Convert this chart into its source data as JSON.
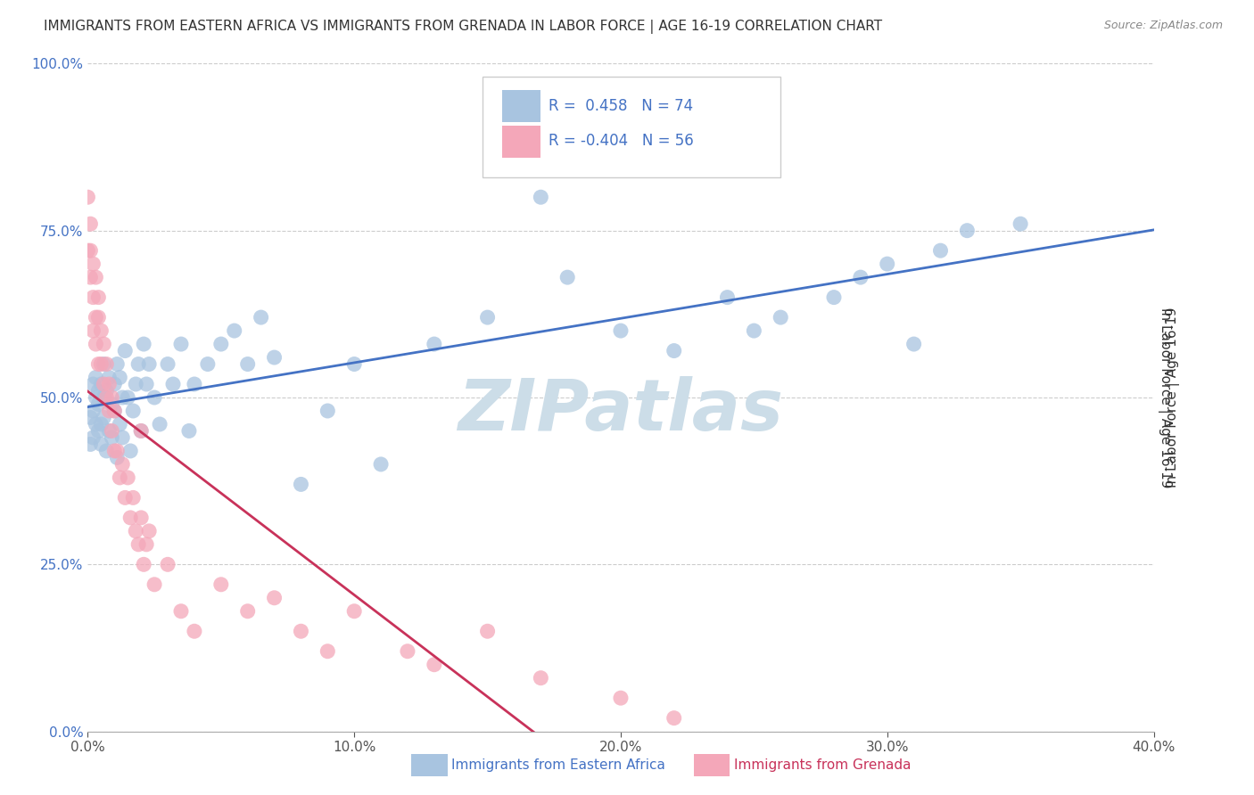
{
  "title": "IMMIGRANTS FROM EASTERN AFRICA VS IMMIGRANTS FROM GRENADA IN LABOR FORCE | AGE 16-19 CORRELATION CHART",
  "source": "Source: ZipAtlas.com",
  "ylabel": "In Labor Force | Age 16-19",
  "x_label_bottom": "Immigrants from Eastern Africa",
  "x_label_bottom2": "Immigrants from Grenada",
  "xlim": [
    0.0,
    0.4
  ],
  "ylim": [
    0.0,
    1.0
  ],
  "xticks": [
    0.0,
    0.1,
    0.2,
    0.3,
    0.4
  ],
  "yticks": [
    0.0,
    0.25,
    0.5,
    0.75,
    1.0
  ],
  "xticklabels": [
    "0.0%",
    "10.0%",
    "20.0%",
    "30.0%",
    "40.0%"
  ],
  "yticklabels": [
    "0.0%",
    "25.0%",
    "50.0%",
    "75.0%",
    "100.0%"
  ],
  "blue_R": 0.458,
  "blue_N": 74,
  "pink_R": -0.404,
  "pink_N": 56,
  "blue_color": "#a8c4e0",
  "pink_color": "#f4a7b9",
  "blue_line_color": "#4472c4",
  "pink_line_color": "#c8325a",
  "watermark": "ZIPatlas",
  "watermark_color": "#ccdde8",
  "legend_text_color": "#4472c4",
  "title_fontsize": 11,
  "axis_label_fontsize": 11,
  "tick_fontsize": 11,
  "blue_scatter_x": [
    0.001,
    0.001,
    0.002,
    0.002,
    0.002,
    0.003,
    0.003,
    0.003,
    0.004,
    0.004,
    0.004,
    0.005,
    0.005,
    0.005,
    0.006,
    0.006,
    0.006,
    0.007,
    0.007,
    0.008,
    0.008,
    0.009,
    0.009,
    0.01,
    0.01,
    0.011,
    0.011,
    0.012,
    0.012,
    0.013,
    0.013,
    0.014,
    0.015,
    0.016,
    0.017,
    0.018,
    0.019,
    0.02,
    0.021,
    0.022,
    0.023,
    0.025,
    0.027,
    0.03,
    0.032,
    0.035,
    0.038,
    0.04,
    0.045,
    0.05,
    0.055,
    0.06,
    0.065,
    0.07,
    0.08,
    0.09,
    0.1,
    0.11,
    0.13,
    0.15,
    0.18,
    0.2,
    0.22,
    0.24,
    0.26,
    0.28,
    0.3,
    0.31,
    0.33,
    0.35,
    0.32,
    0.29,
    0.25,
    0.17
  ],
  "blue_scatter_y": [
    0.43,
    0.47,
    0.48,
    0.52,
    0.44,
    0.5,
    0.46,
    0.53,
    0.51,
    0.45,
    0.49,
    0.46,
    0.52,
    0.43,
    0.5,
    0.47,
    0.55,
    0.42,
    0.51,
    0.45,
    0.53,
    0.49,
    0.44,
    0.52,
    0.48,
    0.55,
    0.41,
    0.53,
    0.46,
    0.5,
    0.44,
    0.57,
    0.5,
    0.42,
    0.48,
    0.52,
    0.55,
    0.45,
    0.58,
    0.52,
    0.55,
    0.5,
    0.46,
    0.55,
    0.52,
    0.58,
    0.45,
    0.52,
    0.55,
    0.58,
    0.6,
    0.55,
    0.62,
    0.56,
    0.37,
    0.48,
    0.55,
    0.4,
    0.58,
    0.62,
    0.68,
    0.6,
    0.57,
    0.65,
    0.62,
    0.65,
    0.7,
    0.58,
    0.75,
    0.76,
    0.72,
    0.68,
    0.6,
    0.8
  ],
  "pink_scatter_x": [
    0.0,
    0.0,
    0.001,
    0.001,
    0.001,
    0.002,
    0.002,
    0.002,
    0.003,
    0.003,
    0.003,
    0.004,
    0.004,
    0.004,
    0.005,
    0.005,
    0.006,
    0.006,
    0.007,
    0.007,
    0.008,
    0.008,
    0.009,
    0.009,
    0.01,
    0.01,
    0.011,
    0.012,
    0.013,
    0.014,
    0.015,
    0.016,
    0.017,
    0.018,
    0.019,
    0.02,
    0.021,
    0.022,
    0.023,
    0.025,
    0.03,
    0.035,
    0.04,
    0.05,
    0.06,
    0.07,
    0.08,
    0.09,
    0.1,
    0.12,
    0.13,
    0.15,
    0.17,
    0.2,
    0.22,
    0.02
  ],
  "pink_scatter_y": [
    0.72,
    0.8,
    0.76,
    0.68,
    0.72,
    0.65,
    0.7,
    0.6,
    0.62,
    0.68,
    0.58,
    0.62,
    0.55,
    0.65,
    0.6,
    0.55,
    0.52,
    0.58,
    0.5,
    0.55,
    0.48,
    0.52,
    0.45,
    0.5,
    0.42,
    0.48,
    0.42,
    0.38,
    0.4,
    0.35,
    0.38,
    0.32,
    0.35,
    0.3,
    0.28,
    0.32,
    0.25,
    0.28,
    0.3,
    0.22,
    0.25,
    0.18,
    0.15,
    0.22,
    0.18,
    0.2,
    0.15,
    0.12,
    0.18,
    0.12,
    0.1,
    0.15,
    0.08,
    0.05,
    0.02,
    0.45
  ]
}
